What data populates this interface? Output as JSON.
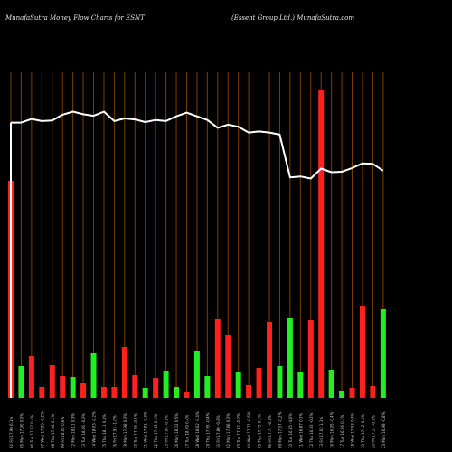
{
  "header": {
    "left_title": "MunafaSutra  Money Flow  Charts for ESNT",
    "right_title": "(Essent Group Ltd.) MunafaSutra.com"
  },
  "chart_data": {
    "type": "bar",
    "title": "MunafaSutra  Money Flow  Charts for ESNT",
    "subtitle": "(Essent Group Ltd.) MunafaSutra.com",
    "xlabel": "",
    "ylabel": "",
    "grid": "vertical",
    "grid_color": "#7a3f00",
    "colors": {
      "up": "#22ee22",
      "down": "#ff2020",
      "line": "#ffffff",
      "background": "#000000"
    },
    "categories": [
      "02 Fri 17.90 6.1%",
      "05 Mon 17.90 0.0%",
      "06 Tue 17.97 0.4%",
      "07 Wed 17.93 -0.2%",
      "08 Thu 17.94 0.1%",
      "09 Fri 18.05 0.6%",
      "12 Mon 18.11 0.3%",
      "13 Tue 18.06 -0.3%",
      "14 Wed 18.03 -0.2%",
      "15 Thu 18.11 0.4%",
      "16 Fri 17.93 -1.0%",
      "19 Mon 17.98 0.3%",
      "20 Tue 17.96 -0.1%",
      "21 Wed 17.91 -0.3%",
      "22 Thu 17.95 0.2%",
      "23 Fri 17.93 -0.1%",
      "26 Mon 18.02 0.5%",
      "27 Tue 18.09 0.4%",
      "28 Wed 18.02 -0.4%",
      "29 Thu 17.95 -0.4%",
      "30 Fri 17.80 -0.8%",
      "02 Mon 17.86 0.3%",
      "03 Tue 17.82 -0.2%",
      "04 Wed 17.71 -0.6%",
      "05 Thu 17.73 0.1%",
      "06 Fri 17.71 -0.1%",
      "09 Mon 17.67 -0.2%",
      "10 Tue 16.85 -4.6%",
      "11 Wed 16.87 0.1%",
      "12 Thu 16.83 -0.2%",
      "13 Fri 17.02 1.1%",
      "16 Mon 16.95 -0.4%",
      "17 Tue 16.96 0.1%",
      "18 Wed 17.03 0.4%",
      "19 Thu 17.12 0.5%",
      "20 Fri 17.11 -0.1%",
      "23 Mon 16.98 -0.8%"
    ],
    "series": [
      {
        "values": [
          240,
          35,
          46,
          12,
          36,
          24,
          23,
          16,
          50,
          12,
          12,
          56,
          25,
          11,
          22,
          30,
          12,
          6,
          52,
          24,
          87,
          69,
          29,
          14,
          33,
          84,
          35,
          88,
          29,
          86,
          340,
          31,
          8,
          11,
          102,
          13,
          98
        ],
        "directions": [
          "down",
          "up",
          "down",
          "down",
          "down",
          "down",
          "up",
          "down",
          "up",
          "down",
          "down",
          "down",
          "down",
          "up",
          "down",
          "up",
          "up",
          "down",
          "up",
          "up",
          "down",
          "down",
          "up",
          "down",
          "down",
          "down",
          "up",
          "up",
          "up",
          "down",
          "down",
          "up",
          "up",
          "down",
          "down",
          "down",
          "up"
        ]
      },
      {
        "type": "line",
        "values": [
          17.9,
          17.9,
          17.97,
          17.93,
          17.94,
          18.05,
          18.11,
          18.06,
          18.03,
          18.11,
          17.93,
          17.98,
          17.96,
          17.91,
          17.95,
          17.93,
          18.02,
          18.09,
          18.02,
          17.95,
          17.8,
          17.86,
          17.82,
          17.71,
          17.73,
          17.71,
          17.67,
          16.85,
          16.87,
          16.83,
          17.02,
          16.95,
          16.96,
          17.03,
          17.12,
          17.11,
          16.98
        ]
      }
    ]
  }
}
